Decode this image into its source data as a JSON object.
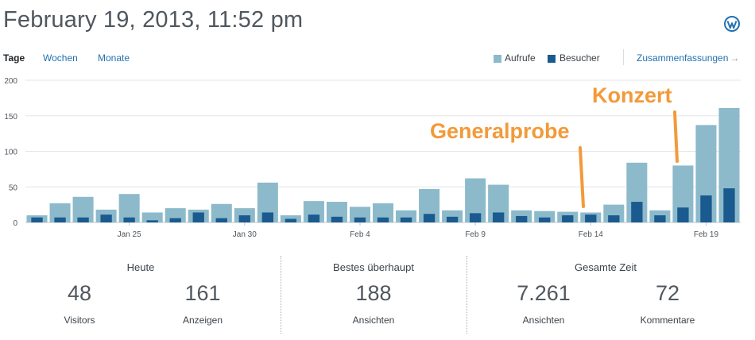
{
  "header": {
    "title": "February 19, 2013, 11:52 pm",
    "logo_icon": "wordpress-logo-icon"
  },
  "tabs": [
    {
      "label": "Tage",
      "active": true
    },
    {
      "label": "Wochen",
      "active": false
    },
    {
      "label": "Monate",
      "active": false
    }
  ],
  "legend": {
    "views_label": "Aufrufe",
    "visitors_label": "Besucher",
    "views_color": "#8cbacb",
    "visitors_color": "#1a5a8f"
  },
  "summaries_link": {
    "label": "Zusammenfassungen",
    "icon": "arrow-right-icon"
  },
  "chart_data": {
    "type": "bar",
    "ylim": [
      0,
      200
    ],
    "yticks": [
      0,
      50,
      100,
      150,
      200
    ],
    "xtick_labels": [
      {
        "index": 4,
        "label": "Jan 25"
      },
      {
        "index": 9,
        "label": "Jan 30"
      },
      {
        "index": 14,
        "label": "Feb 4"
      },
      {
        "index": 19,
        "label": "Feb 9"
      },
      {
        "index": 24,
        "label": "Feb 14"
      },
      {
        "index": 29,
        "label": "Feb 19"
      }
    ],
    "series": [
      {
        "name": "Aufrufe",
        "values": [
          10,
          27,
          36,
          18,
          40,
          14,
          20,
          18,
          26,
          20,
          56,
          10,
          30,
          29,
          22,
          27,
          17,
          47,
          17,
          62,
          53,
          17,
          16,
          15,
          14,
          25,
          84,
          17,
          80,
          137,
          161
        ]
      },
      {
        "name": "Besucher",
        "values": [
          7,
          7,
          7,
          11,
          7,
          3,
          6,
          14,
          6,
          10,
          14,
          5,
          11,
          8,
          7,
          7,
          7,
          12,
          8,
          13,
          14,
          9,
          7,
          10,
          11,
          10,
          29,
          10,
          21,
          38,
          48
        ]
      }
    ]
  },
  "annotations": [
    {
      "text": "Generalprobe"
    },
    {
      "text": "Konzert"
    }
  ],
  "stats": {
    "today": {
      "title": "Heute",
      "visitors_value": "48",
      "visitors_label": "Visitors",
      "views_value": "161",
      "views_label": "Anzeigen"
    },
    "best": {
      "title": "Bestes überhaupt",
      "value": "188",
      "label": "Ansichten"
    },
    "all_time": {
      "title": "Gesamte Zeit",
      "views_value": "7.261",
      "views_label": "Ansichten",
      "comments_value": "72",
      "comments_label": "Kommentare"
    }
  }
}
